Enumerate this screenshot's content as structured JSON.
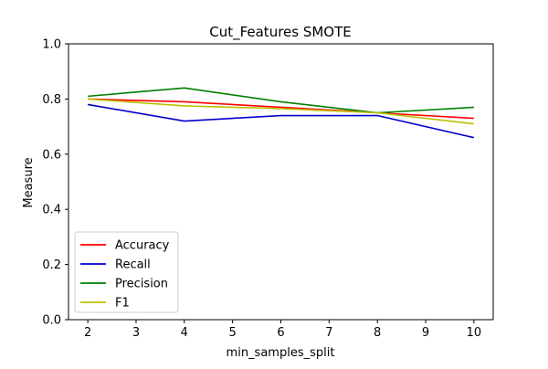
{
  "chart_data": {
    "type": "line",
    "title": "Cut_Features SMOTE",
    "xlabel": "min_samples_split",
    "ylabel": "Measure",
    "x": [
      2,
      4,
      6,
      8,
      10
    ],
    "xticks": [
      2,
      3,
      4,
      5,
      6,
      7,
      8,
      9,
      10
    ],
    "xlim": [
      1.6,
      10.4
    ],
    "ylim": [
      0.0,
      1.0
    ],
    "yticks": [
      0.0,
      0.2,
      0.4,
      0.6,
      0.8,
      1.0
    ],
    "grid": false,
    "legend_position": "lower-left",
    "series": [
      {
        "name": "Accuracy",
        "color": "#ff0000",
        "values": [
          0.8,
          0.79,
          0.77,
          0.75,
          0.73
        ]
      },
      {
        "name": "Recall",
        "color": "#0000cc",
        "values": [
          0.78,
          0.72,
          0.74,
          0.74,
          0.66
        ]
      },
      {
        "name": "Precision",
        "color": "#008000",
        "values": [
          0.81,
          0.84,
          0.79,
          0.75,
          0.77
        ]
      },
      {
        "name": "F1",
        "color": "#bfbf00",
        "values": [
          0.8,
          0.775,
          0.765,
          0.75,
          0.71
        ]
      }
    ]
  }
}
